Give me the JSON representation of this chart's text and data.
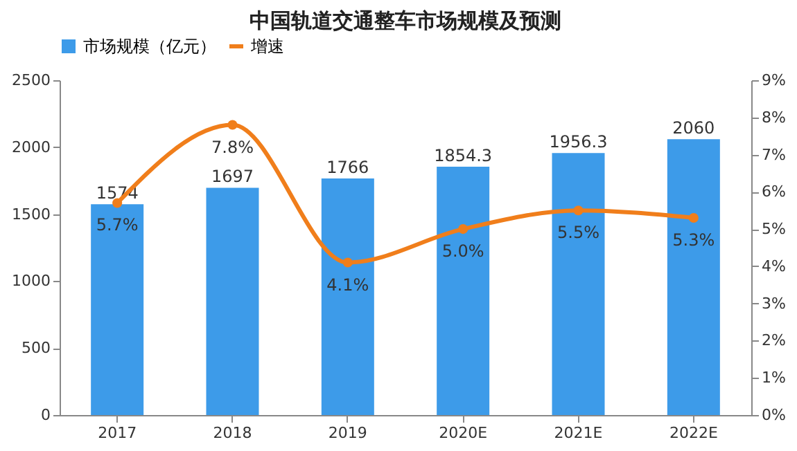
{
  "chart_data": {
    "type": "bar",
    "title": "中国轨道交通整车市场规模及预测",
    "categories": [
      "2017",
      "2018",
      "2019",
      "2020E",
      "2021E",
      "2022E"
    ],
    "series": [
      {
        "name": "市场规模（亿元）",
        "color": "#3d9be9",
        "values": [
          1574,
          1697,
          1766,
          1854.3,
          1956.3,
          2060
        ],
        "value_labels": [
          "1574",
          "1697",
          "1766",
          "1854.3",
          "1956.3",
          "2060"
        ]
      },
      {
        "name": "增速",
        "type": "line",
        "axis": "y2",
        "color": "#f07e1b",
        "values": [
          5.7,
          7.8,
          4.1,
          5.0,
          5.5,
          5.3
        ],
        "value_labels": [
          "5.7%",
          "7.8%",
          "4.1%",
          "5.0%",
          "5.5%",
          "5.3%"
        ]
      }
    ],
    "ylim": [
      0,
      2500
    ],
    "yticks": [
      0,
      500,
      1000,
      1500,
      2000,
      2500
    ],
    "y2lim": [
      0,
      9
    ],
    "y2ticks": [
      {
        "value": 0,
        "label": "0%"
      },
      {
        "value": 1,
        "label": "1%"
      },
      {
        "value": 2,
        "label": "2%"
      },
      {
        "value": 3,
        "label": "3%"
      },
      {
        "value": 4,
        "label": "4%"
      },
      {
        "value": 5,
        "label": "5%"
      },
      {
        "value": 6,
        "label": "6%"
      },
      {
        "value": 7,
        "label": "7%"
      },
      {
        "value": 8,
        "label": "8%"
      },
      {
        "value": 9,
        "label": "9%"
      }
    ],
    "grid": false,
    "legend": "top",
    "marker": "circle",
    "line_style": "solid"
  }
}
